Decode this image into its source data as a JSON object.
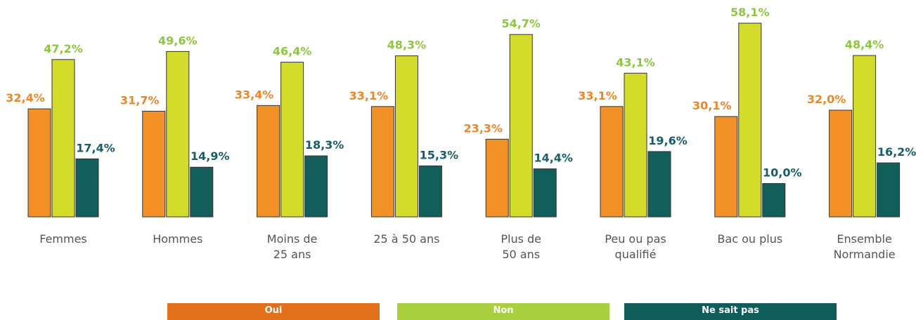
{
  "chart_data": {
    "type": "bar",
    "categories": [
      "Femmes",
      "Hommes",
      "Moins de\n25 ans",
      "25 à 50 ans",
      "Plus de\n50 ans",
      "Peu ou pas\nqualifié",
      "Bac ou plus",
      "Ensemble\nNormandie"
    ],
    "series": [
      {
        "name": "Oui",
        "color": "#f39129",
        "label_color": "#ef8626",
        "legend_color": "#e2711e",
        "values": [
          32.4,
          31.7,
          33.4,
          33.1,
          23.3,
          33.1,
          30.1,
          32.0
        ],
        "value_labels": [
          "32,4%",
          "31,7%",
          "33,4%",
          "33,1%",
          "23,3%",
          "33,1%",
          "30,1%",
          "32,0%"
        ]
      },
      {
        "name": "Non",
        "color": "#d4dc2b",
        "label_color": "#8dc63f",
        "legend_color": "#a9cf3e",
        "values": [
          47.2,
          49.6,
          46.4,
          48.3,
          54.7,
          43.1,
          58.1,
          48.4
        ],
        "value_labels": [
          "47,2%",
          "49,6%",
          "46,4%",
          "48,3%",
          "54,7%",
          "43,1%",
          "58,1%",
          "48,4%"
        ]
      },
      {
        "name": "Ne sait pas",
        "color": "#115e5b",
        "label_color": "#175d6a",
        "legend_color": "#105c5a",
        "values": [
          17.4,
          14.9,
          18.3,
          15.3,
          14.4,
          19.6,
          10.0,
          16.2
        ],
        "value_labels": [
          "17,4%",
          "14,9%",
          "18,3%",
          "15,3%",
          "14,4%",
          "19,6%",
          "10,0%",
          "16,2%"
        ]
      }
    ],
    "ylim": [
      0,
      60
    ],
    "grid": false
  }
}
